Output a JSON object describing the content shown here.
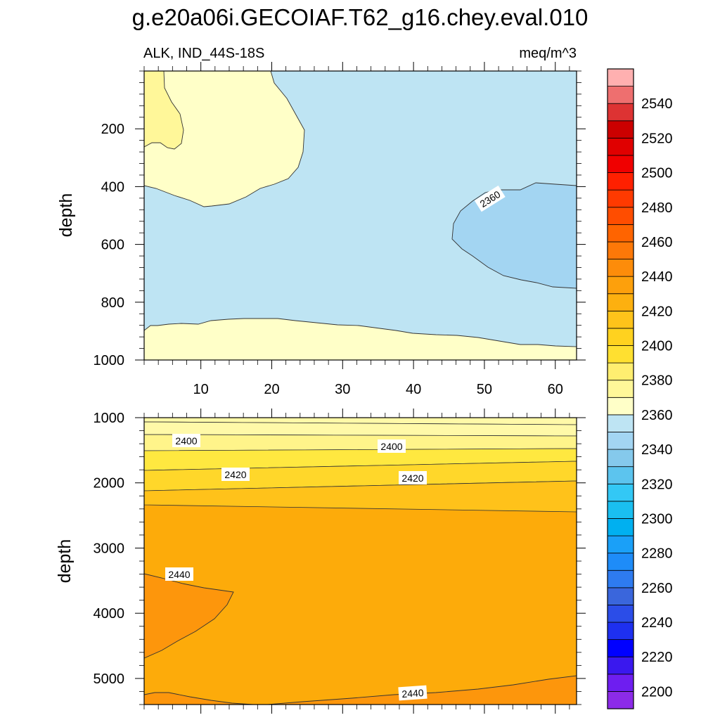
{
  "title": "g.e20a06i.GECOIAF.T62_g16.chey.eval.010",
  "chart_data": {
    "type": "contour",
    "variable_label": "ALK, IND_44S-18S",
    "units": "meq/m^3",
    "xlabel": "",
    "ylabel": "depth",
    "x_range": [
      2,
      63
    ],
    "x_ticks": [
      10,
      20,
      30,
      40,
      50,
      60
    ],
    "panels": [
      {
        "name": "upper",
        "y_range": [
          0,
          1000
        ],
        "y_ticks": [
          200,
          400,
          600,
          800,
          1000
        ],
        "regions": [
          {
            "level": 2370,
            "label": "2360-2380",
            "color": "#BEE4F3",
            "area": "background"
          },
          {
            "level": 2350,
            "label": "2340-2360",
            "color": "#A3D5F2",
            "area": "x 45-63, depth 390-760"
          },
          {
            "level": 2390,
            "label": "2380-2390",
            "color": "#FFFFC8",
            "area": "x 2-24, depth 0-470"
          },
          {
            "level": 2390,
            "label": "2380-2390",
            "color": "#FFFFC8",
            "area": "x 2-63, depth 860-1000"
          },
          {
            "level": 2395,
            "label": "2390-2400",
            "color": "#FFF799",
            "area": "x 2-7, depth 0-260"
          }
        ],
        "contour_labels": [
          {
            "text": "2360",
            "x": 50,
            "depth": 430
          }
        ]
      },
      {
        "name": "lower",
        "y_range": [
          1000,
          5400
        ],
        "y_ticks": [
          1000,
          2000,
          3000,
          4000,
          5000
        ],
        "bands_at_left_edge": [
          {
            "label": "2380-2390",
            "color": "#FFF9A8",
            "top": 1000,
            "bottom": 1070
          },
          {
            "label": "2390-2400",
            "color": "#FFF48A",
            "top": 1070,
            "bottom": 1280
          },
          {
            "label": "2400-2410",
            "color": "#FFE840",
            "top": 1280,
            "bottom": 1550
          },
          {
            "label": "2410-2420",
            "color": "#FFD72A",
            "top": 1550,
            "bottom": 1850
          },
          {
            "label": "2420-2430",
            "color": "#FFC21A",
            "top": 1850,
            "bottom": 2330
          },
          {
            "label": "2430-2440",
            "color": "#FDAB0A",
            "top": 2330,
            "bottom": 3370
          },
          {
            "label": "2440-2450",
            "color": "#FD960C",
            "top": 3370,
            "bottom": 4650
          },
          {
            "label": "2430-2440",
            "color": "#FDAB0A",
            "top": 4650,
            "bottom": 5180
          },
          {
            "label": "2440-2450",
            "color": "#FD960C",
            "top": 5180,
            "bottom": 5400
          }
        ],
        "contour_labels": [
          {
            "text": "2400",
            "x": 8,
            "depth": 1350
          },
          {
            "text": "2400",
            "x": 39,
            "depth": 1430
          },
          {
            "text": "2420",
            "x": 15,
            "depth": 1900
          },
          {
            "text": "2420",
            "x": 39,
            "depth": 1950
          },
          {
            "text": "2440",
            "x": 7,
            "depth": 3400
          },
          {
            "text": "2440",
            "x": 39,
            "depth": 5200
          }
        ]
      }
    ],
    "colorbar": {
      "levels": [
        2190,
        2200,
        2210,
        2220,
        2230,
        2240,
        2250,
        2260,
        2270,
        2280,
        2290,
        2300,
        2310,
        2320,
        2330,
        2340,
        2350,
        2360,
        2370,
        2380,
        2390,
        2400,
        2410,
        2420,
        2430,
        2440,
        2450,
        2460,
        2470,
        2480,
        2490,
        2500,
        2510,
        2520,
        2530,
        2540,
        2550,
        2560
      ],
      "labels": [
        "2200",
        "2220",
        "2240",
        "2260",
        "2280",
        "2300",
        "2320",
        "2340",
        "2360",
        "2380",
        "2400",
        "2420",
        "2440",
        "2460",
        "2480",
        "2500",
        "2520",
        "2540"
      ],
      "colors": [
        "#8C2BE8",
        "#6E1EF0",
        "#3A18EE",
        "#0000FF",
        "#1E30F0",
        "#2B4DE8",
        "#3A66DC",
        "#2E7BF0",
        "#1E8CF8",
        "#1AA0F8",
        "#00B0F0",
        "#1ABFF0",
        "#33C8F5",
        "#5CC4EE",
        "#85C9EC",
        "#A3D5F2",
        "#BEE4F3",
        "#FFFFC8",
        "#FFF799",
        "#FFEE70",
        "#FFE030",
        "#FFD21F",
        "#FFC31A",
        "#FDB00F",
        "#FDA00C",
        "#FD8C0A",
        "#FD7808",
        "#FF6400",
        "#FF4D00",
        "#FF3A00",
        "#FF2000",
        "#F00000",
        "#E00000",
        "#CC0000",
        "#DD3333",
        "#EE6F6F",
        "#FFB0B0"
      ]
    }
  }
}
